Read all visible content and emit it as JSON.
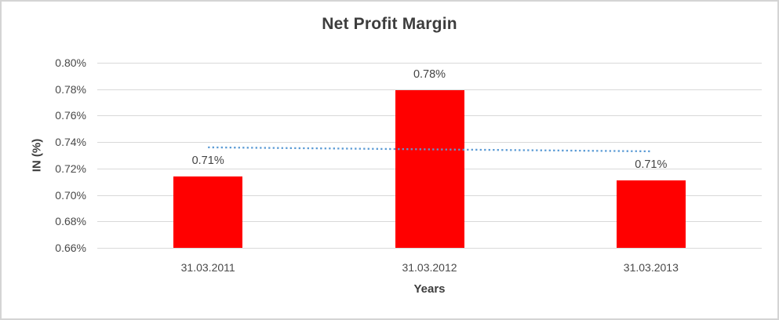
{
  "window": {
    "background": "#ffffff",
    "border_color": "#d4d4d4"
  },
  "chart_data": {
    "type": "bar",
    "title": "Net Profit Margin",
    "xlabel": "Years",
    "ylabel": "IN (%)",
    "categories": [
      "31.03.2011",
      "31.03.2012",
      "31.03.2013"
    ],
    "values": [
      0.714,
      0.779,
      0.711
    ],
    "data_labels": [
      "0.71%",
      "0.78%",
      "0.71%"
    ],
    "ylim": [
      0.66,
      0.8
    ],
    "ytick_values": [
      0.8,
      0.78,
      0.76,
      0.74,
      0.72,
      0.7,
      0.68,
      0.66
    ],
    "ytick_labels": [
      "0.80%",
      "0.78%",
      "0.76%",
      "0.74%",
      "0.72%",
      "0.70%",
      "0.68%",
      "0.66%"
    ],
    "grid": true,
    "legend": false,
    "bar_color": "#FF0000",
    "gridline_color": "#D9D9D9",
    "text_color": "#404040",
    "trendline": {
      "type": "linear",
      "style": "dotted",
      "color": "#5B9BD5",
      "start_value": 0.736,
      "end_value": 0.733
    }
  }
}
